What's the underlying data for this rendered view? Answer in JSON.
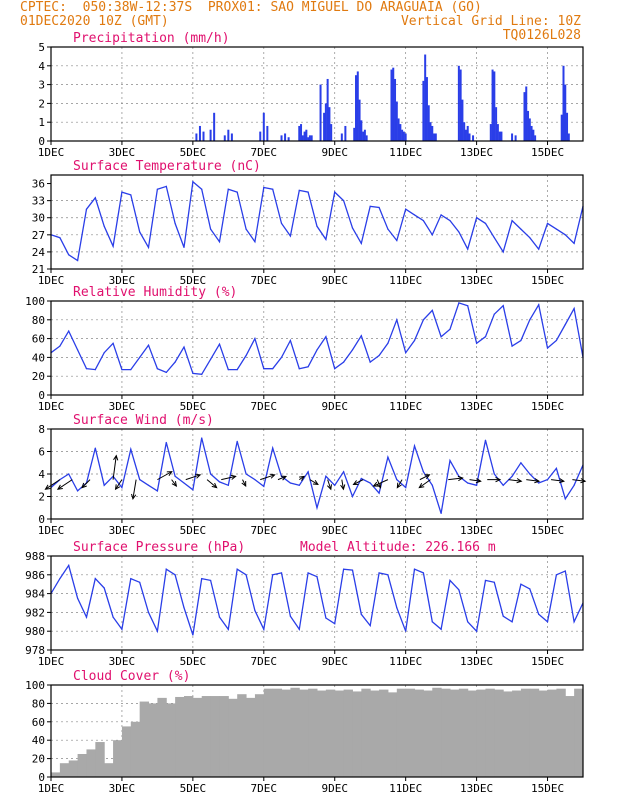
{
  "header": {
    "line1_left": "CPTEC:  050:38W-12:37S  PROX01: SAO MIGUEL DO ARAGUAIA (GO)",
    "line2_left": "01DEC2020 10Z (GMT)",
    "line2_right": "Vertical Grid Line: 10Z",
    "line3_right": "TQ0126L028"
  },
  "colors": {
    "header": "#e07a10",
    "title": "#e0106e",
    "series": "#2a3ee8",
    "bars": "#2a3ee8",
    "cloud": "#a9a9a9",
    "wind_arrow": "#000000"
  },
  "x_ticks": [
    "1DEC",
    "3DEC",
    "5DEC",
    "7DEC",
    "9DEC",
    "11DEC",
    "13DEC",
    "15DEC"
  ],
  "chart_data": [
    {
      "type": "bar",
      "title": "Precipitation (mm/h)",
      "ylim": [
        0,
        5
      ],
      "yticks": [
        "0",
        "1",
        "2",
        "3",
        "4",
        "5"
      ],
      "xrange_days": [
        1,
        16
      ],
      "x": [
        5.1,
        5.2,
        5.3,
        5.5,
        5.6,
        5.9,
        6.0,
        6.1,
        6.9,
        7.0,
        7.1,
        7.5,
        7.6,
        7.7,
        8.0,
        8.05,
        8.1,
        8.15,
        8.2,
        8.25,
        8.3,
        8.35,
        8.6,
        8.7,
        8.75,
        8.8,
        8.85,
        8.9,
        9.2,
        9.3,
        9.55,
        9.6,
        9.65,
        9.7,
        9.75,
        9.8,
        9.85,
        9.9,
        10.6,
        10.65,
        10.7,
        10.75,
        10.8,
        10.85,
        10.9,
        10.95,
        11.0,
        11.5,
        11.55,
        11.6,
        11.65,
        11.7,
        11.75,
        11.8,
        11.85,
        12.5,
        12.55,
        12.6,
        12.65,
        12.7,
        12.75,
        12.8,
        12.9,
        13.4,
        13.45,
        13.5,
        13.55,
        13.6,
        13.65,
        13.7,
        14.0,
        14.1,
        14.35,
        14.4,
        14.45,
        14.5,
        14.55,
        14.6,
        14.65,
        15.4,
        15.45,
        15.5,
        15.55,
        15.6
      ],
      "values": [
        0.4,
        0.8,
        0.5,
        0.6,
        1.5,
        0.3,
        0.6,
        0.4,
        0.5,
        1.5,
        0.8,
        0.3,
        0.4,
        0.2,
        0.8,
        0.9,
        0.3,
        0.5,
        0.6,
        0.2,
        0.3,
        0.3,
        3.0,
        1.5,
        2.0,
        3.3,
        1.8,
        0.9,
        0.4,
        0.8,
        0.7,
        3.5,
        3.7,
        2.2,
        1.1,
        0.5,
        0.6,
        0.3,
        3.8,
        3.9,
        3.3,
        2.1,
        1.2,
        0.9,
        0.6,
        0.5,
        0.4,
        3.2,
        4.6,
        3.4,
        1.9,
        1.0,
        0.8,
        0.4,
        0.4,
        4.0,
        3.8,
        2.2,
        1.0,
        0.6,
        0.8,
        0.4,
        0.3,
        0.9,
        3.8,
        3.7,
        1.8,
        0.9,
        0.5,
        0.5,
        0.4,
        0.3,
        2.6,
        2.9,
        1.6,
        1.2,
        0.8,
        0.6,
        0.3,
        1.4,
        4.0,
        3.0,
        1.5,
        0.4
      ]
    },
    {
      "type": "line",
      "title": "Surface Temperature (nC)",
      "ylim": [
        21,
        37.5
      ],
      "yticks": [
        "21",
        "24",
        "27",
        "30",
        "33",
        "36"
      ],
      "x": [
        1.0,
        1.25,
        1.5,
        1.75,
        2.0,
        2.25,
        2.5,
        2.75,
        3.0,
        3.25,
        3.5,
        3.75,
        4.0,
        4.25,
        4.5,
        4.75,
        5.0,
        5.25,
        5.5,
        5.75,
        6.0,
        6.25,
        6.5,
        6.75,
        7.0,
        7.25,
        7.5,
        7.75,
        8.0,
        8.25,
        8.5,
        8.75,
        9.0,
        9.25,
        9.5,
        9.75,
        10.0,
        10.25,
        10.5,
        10.75,
        11.0,
        11.25,
        11.5,
        11.75,
        12.0,
        12.25,
        12.5,
        12.75,
        13.0,
        13.25,
        13.5,
        13.75,
        14.0,
        14.25,
        14.5,
        14.75,
        15.0,
        15.25,
        15.5,
        15.75,
        16.0
      ],
      "values": [
        27.0,
        26.5,
        23.5,
        22.5,
        31.5,
        33.5,
        28.5,
        25.0,
        34.5,
        34.0,
        27.5,
        24.8,
        35.0,
        35.5,
        29.0,
        24.8,
        36.3,
        35.0,
        28.0,
        25.8,
        35.0,
        34.5,
        28.0,
        25.8,
        35.3,
        35.0,
        29.0,
        26.8,
        34.8,
        34.5,
        28.5,
        26.2,
        34.5,
        33.0,
        28.2,
        25.5,
        32.0,
        31.8,
        28.0,
        26.0,
        31.5,
        30.5,
        29.5,
        27.0,
        30.5,
        29.5,
        27.5,
        24.5,
        30.0,
        29.0,
        26.5,
        24.0,
        29.5,
        28.0,
        26.5,
        24.5,
        29.0,
        28.0,
        27.0,
        25.5,
        32.0
      ]
    },
    {
      "type": "line",
      "title": "Relative Humidity (%)",
      "ylim": [
        0,
        100
      ],
      "yticks": [
        "0",
        "20",
        "40",
        "60",
        "80",
        "100"
      ],
      "x": [
        1.0,
        1.25,
        1.5,
        1.75,
        2.0,
        2.25,
        2.5,
        2.75,
        3.0,
        3.25,
        3.5,
        3.75,
        4.0,
        4.25,
        4.5,
        4.75,
        5.0,
        5.25,
        5.5,
        5.75,
        6.0,
        6.25,
        6.5,
        6.75,
        7.0,
        7.25,
        7.5,
        7.75,
        8.0,
        8.25,
        8.5,
        8.75,
        9.0,
        9.25,
        9.5,
        9.75,
        10.0,
        10.25,
        10.5,
        10.75,
        11.0,
        11.25,
        11.5,
        11.75,
        12.0,
        12.25,
        12.5,
        12.75,
        13.0,
        13.25,
        13.5,
        13.75,
        14.0,
        14.25,
        14.5,
        14.75,
        15.0,
        15.25,
        15.5,
        15.75,
        16.0
      ],
      "values": [
        45.0,
        52.0,
        68.0,
        48.0,
        28.0,
        27.0,
        45.0,
        55.0,
        27.0,
        27.0,
        40.0,
        53.0,
        28.0,
        24.0,
        35.0,
        51.0,
        23.0,
        22.0,
        38.0,
        54.0,
        27.0,
        27.0,
        42.0,
        60.0,
        28.0,
        28.0,
        40.0,
        58.0,
        28.0,
        30.0,
        48.0,
        62.0,
        28.0,
        35.0,
        48.0,
        63.0,
        35.0,
        42.0,
        55.0,
        80.0,
        45.0,
        58.0,
        80.0,
        90.0,
        62.0,
        70.0,
        98.0,
        95.0,
        55.0,
        62.0,
        86.0,
        95.0,
        52.0,
        58.0,
        80.0,
        96.0,
        50.0,
        58.0,
        75.0,
        92.0,
        40.0
      ]
    },
    {
      "type": "line",
      "title": "Surface Wind (m/s)",
      "ylim": [
        0,
        8
      ],
      "yticks": [
        "0",
        "2",
        "4",
        "6",
        "8"
      ],
      "x": [
        1.0,
        1.25,
        1.5,
        1.75,
        2.0,
        2.25,
        2.5,
        2.75,
        3.0,
        3.25,
        3.5,
        3.75,
        4.0,
        4.25,
        4.5,
        4.75,
        5.0,
        5.25,
        5.5,
        5.75,
        6.0,
        6.25,
        6.5,
        6.75,
        7.0,
        7.25,
        7.5,
        7.75,
        8.0,
        8.25,
        8.5,
        8.75,
        9.0,
        9.25,
        9.5,
        9.75,
        10.0,
        10.25,
        10.5,
        10.75,
        11.0,
        11.25,
        11.5,
        11.75,
        12.0,
        12.25,
        12.5,
        12.75,
        13.0,
        13.25,
        13.5,
        13.75,
        14.0,
        14.25,
        14.5,
        14.75,
        15.0,
        15.25,
        15.5,
        15.75,
        16.0
      ],
      "values": [
        2.8,
        3.5,
        4.0,
        2.5,
        3.2,
        6.3,
        3.0,
        3.8,
        2.8,
        6.2,
        3.5,
        3.0,
        2.5,
        6.8,
        3.8,
        3.2,
        2.6,
        7.2,
        4.0,
        3.3,
        3.0,
        6.9,
        4.0,
        3.5,
        2.9,
        6.3,
        3.8,
        3.2,
        3.0,
        4.2,
        1.0,
        3.8,
        3.0,
        4.2,
        2.0,
        3.6,
        3.2,
        2.3,
        5.5,
        3.5,
        2.8,
        6.5,
        4.2,
        3.0,
        0.5,
        5.2,
        3.8,
        3.2,
        3.0,
        7.0,
        4.0,
        3.0,
        3.8,
        5.0,
        4.0,
        3.2,
        3.5,
        4.5,
        1.8,
        3.0,
        4.8
      ],
      "arrows": [
        {
          "x": 1.25,
          "dx": -0.9,
          "dy": 0.6
        },
        {
          "x": 1.6,
          "dx": -0.9,
          "dy": 0.6
        },
        {
          "x": 2.1,
          "dx": -0.5,
          "dy": 0.5
        },
        {
          "x": 2.75,
          "dx": 0.2,
          "dy": -1.5
        },
        {
          "x": 3.0,
          "dx": -0.4,
          "dy": 0.6
        },
        {
          "x": 3.4,
          "dx": -0.2,
          "dy": 1.2
        },
        {
          "x": 4.0,
          "dx": 0.9,
          "dy": -0.5
        },
        {
          "x": 4.4,
          "dx": 0.3,
          "dy": 0.4
        },
        {
          "x": 4.8,
          "dx": 0.9,
          "dy": -0.3
        },
        {
          "x": 5.4,
          "dx": 0.6,
          "dy": 0.5
        },
        {
          "x": 5.8,
          "dx": 0.9,
          "dy": -0.2
        },
        {
          "x": 6.4,
          "dx": 0.2,
          "dy": 0.4
        },
        {
          "x": 6.9,
          "dx": 0.9,
          "dy": -0.3
        },
        {
          "x": 7.4,
          "dx": 0.5,
          "dy": -0.2
        },
        {
          "x": 8.0,
          "dx": 0.3,
          "dy": -0.2
        },
        {
          "x": 8.3,
          "dx": 0.5,
          "dy": 0.3
        },
        {
          "x": 8.8,
          "dx": 0.2,
          "dy": 0.6
        },
        {
          "x": 9.2,
          "dx": 0.1,
          "dy": 0.6
        },
        {
          "x": 9.8,
          "dx": -0.6,
          "dy": 0.3
        },
        {
          "x": 10.2,
          "dx": 0.2,
          "dy": 0.5
        },
        {
          "x": 10.5,
          "dx": -0.9,
          "dy": 0.4
        },
        {
          "x": 10.9,
          "dx": -0.3,
          "dy": 0.5
        },
        {
          "x": 11.4,
          "dx": 0.6,
          "dy": -0.3
        },
        {
          "x": 11.7,
          "dx": -0.7,
          "dy": 0.5
        },
        {
          "x": 12.2,
          "dx": 0.9,
          "dy": -0.1
        },
        {
          "x": 12.8,
          "dx": 0.7,
          "dy": 0.1
        },
        {
          "x": 13.3,
          "dx": 0.8,
          "dy": 0.0
        },
        {
          "x": 13.9,
          "dx": 0.8,
          "dy": 0.1
        },
        {
          "x": 14.4,
          "dx": 0.8,
          "dy": 0.1
        },
        {
          "x": 15.1,
          "dx": 0.8,
          "dy": 0.1
        },
        {
          "x": 15.7,
          "dx": 0.8,
          "dy": 0.1
        }
      ]
    },
    {
      "type": "line",
      "title": "Surface Pressure (hPa)",
      "annotation": "Model Altitude: 226.166 m",
      "ylim": [
        978,
        988
      ],
      "yticks": [
        "978",
        "980",
        "982",
        "984",
        "986",
        "988"
      ],
      "x": [
        1.0,
        1.25,
        1.5,
        1.75,
        2.0,
        2.25,
        2.5,
        2.75,
        3.0,
        3.25,
        3.5,
        3.75,
        4.0,
        4.25,
        4.5,
        4.75,
        5.0,
        5.25,
        5.5,
        5.75,
        6.0,
        6.25,
        6.5,
        6.75,
        7.0,
        7.25,
        7.5,
        7.75,
        8.0,
        8.25,
        8.5,
        8.75,
        9.0,
        9.25,
        9.5,
        9.75,
        10.0,
        10.25,
        10.5,
        10.75,
        11.0,
        11.25,
        11.5,
        11.75,
        12.0,
        12.25,
        12.5,
        12.75,
        13.0,
        13.25,
        13.5,
        13.75,
        14.0,
        14.25,
        14.5,
        14.75,
        15.0,
        15.25,
        15.5,
        15.75,
        16.0
      ],
      "values": [
        984.0,
        985.6,
        987.0,
        983.5,
        981.5,
        985.6,
        984.6,
        981.5,
        980.2,
        985.6,
        985.2,
        982.0,
        980.0,
        986.6,
        986.0,
        982.5,
        979.6,
        985.6,
        985.4,
        981.5,
        980.2,
        986.6,
        986.0,
        982.2,
        980.2,
        986.0,
        986.2,
        981.6,
        980.2,
        986.2,
        985.8,
        981.4,
        980.8,
        986.6,
        986.5,
        981.8,
        980.6,
        986.2,
        986.0,
        982.5,
        980.0,
        986.6,
        986.2,
        981.0,
        980.2,
        985.4,
        984.4,
        981.0,
        980.0,
        985.4,
        985.2,
        981.6,
        981.0,
        985.0,
        984.5,
        981.8,
        981.0,
        986.0,
        986.4,
        981.0,
        983.0
      ]
    },
    {
      "type": "bar",
      "title": "Cloud Cover (%)",
      "ylim": [
        0,
        100
      ],
      "yticks": [
        "0",
        "20",
        "40",
        "60",
        "80",
        "100"
      ],
      "x": [
        1.0,
        1.25,
        1.5,
        1.75,
        2.0,
        2.25,
        2.5,
        2.75,
        3.0,
        3.25,
        3.5,
        3.75,
        4.0,
        4.25,
        4.5,
        4.75,
        5.0,
        5.25,
        5.5,
        5.75,
        6.0,
        6.25,
        6.5,
        6.75,
        7.0,
        7.25,
        7.5,
        7.75,
        8.0,
        8.25,
        8.5,
        8.75,
        9.0,
        9.25,
        9.5,
        9.75,
        10.0,
        10.25,
        10.5,
        10.75,
        11.0,
        11.25,
        11.5,
        11.75,
        12.0,
        12.25,
        12.5,
        12.75,
        13.0,
        13.25,
        13.5,
        13.75,
        14.0,
        14.25,
        14.5,
        14.75,
        15.0,
        15.25,
        15.5,
        15.75
      ],
      "values": [
        5,
        15,
        18,
        25,
        30,
        38,
        15,
        40,
        55,
        60,
        82,
        80,
        86,
        80,
        87,
        88,
        86,
        88,
        88,
        88,
        85,
        90,
        86,
        90,
        96,
        96,
        95,
        97,
        95,
        96,
        94,
        95,
        94,
        95,
        93,
        96,
        94,
        95,
        92,
        96,
        96,
        95,
        94,
        97,
        96,
        95,
        96,
        94,
        95,
        96,
        95,
        93,
        94,
        96,
        96,
        94,
        95,
        96,
        88,
        96
      ]
    }
  ]
}
